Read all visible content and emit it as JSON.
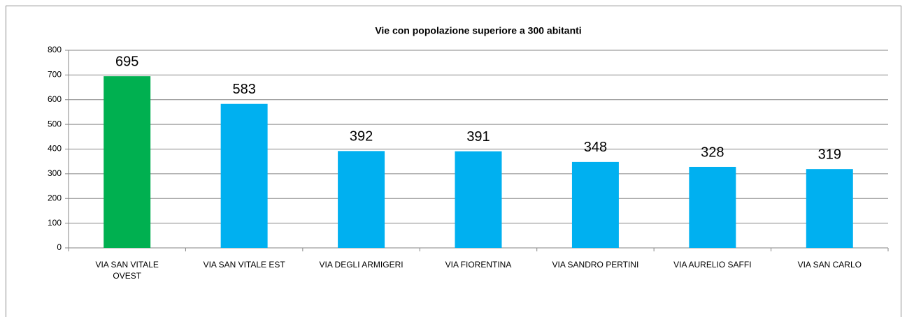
{
  "chart_data": {
    "type": "bar",
    "title": "Vie con popolazione superiore a 300 abitanti",
    "categories": [
      "VIA SAN VITALE OVEST",
      "VIA SAN VITALE EST",
      "VIA DEGLI ARMIGERI",
      "VIA FIORENTINA",
      "VIA SANDRO PERTINI",
      "VIA AURELIO SAFFI",
      "VIA SAN CARLO"
    ],
    "values": [
      695,
      583,
      392,
      391,
      348,
      328,
      319
    ],
    "colors": [
      "#00b050",
      "#00b0f0",
      "#00b0f0",
      "#00b0f0",
      "#00b0f0",
      "#00b0f0",
      "#00b0f0"
    ],
    "ylim": [
      0,
      800
    ],
    "yticks": [
      0,
      100,
      200,
      300,
      400,
      500,
      600,
      700,
      800
    ],
    "grid": true
  }
}
